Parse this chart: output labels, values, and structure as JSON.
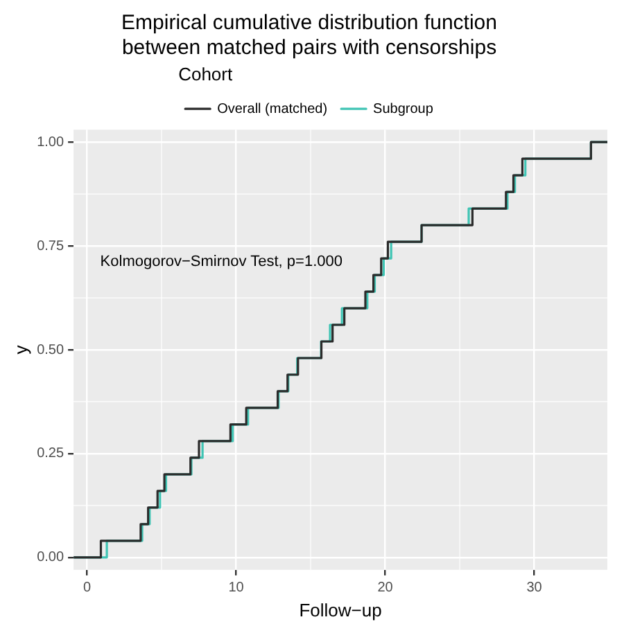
{
  "chart_data": {
    "type": "step",
    "title": "Empirical cumulative distribution function\nbetween matched pairs with censorships",
    "xlabel": "Follow−up",
    "ylabel": "y",
    "legend_title": "Cohort",
    "series": [
      {
        "name": "Overall (matched)",
        "color": "#2b2b2b",
        "x": [
          -0.9,
          0.93,
          3.6,
          4.1,
          4.73,
          5.19,
          6.94,
          7.51,
          9.62,
          10.68,
          12.79,
          13.45,
          14.15,
          15.72,
          16.47,
          17.26,
          18.67,
          19.21,
          19.73,
          20.18,
          22.44,
          25.85,
          28.1,
          28.6,
          29.2,
          33.8,
          34.9
        ],
        "values": [
          0,
          0.04,
          0.08,
          0.12,
          0.16,
          0.2,
          0.24,
          0.28,
          0.32,
          0.36,
          0.4,
          0.44,
          0.48,
          0.52,
          0.56,
          0.6,
          0.64,
          0.68,
          0.72,
          0.76,
          0.8,
          0.84,
          0.88,
          0.92,
          0.96,
          1,
          1
        ]
      },
      {
        "name": "Subgroup",
        "color": "#40c4b4",
        "x": [
          -0.9,
          1.33,
          3.7,
          4.2,
          4.9,
          5.3,
          7.0,
          7.75,
          9.77,
          10.8,
          12.85,
          13.5,
          14.1,
          15.7,
          16.3,
          17.1,
          18.8,
          19.3,
          19.9,
          20.4,
          22.44,
          25.6,
          28.2,
          28.7,
          29.4,
          33.8,
          34.9
        ],
        "values": [
          0,
          0.04,
          0.08,
          0.12,
          0.16,
          0.2,
          0.24,
          0.28,
          0.32,
          0.36,
          0.4,
          0.44,
          0.48,
          0.52,
          0.56,
          0.6,
          0.64,
          0.68,
          0.72,
          0.76,
          0.8,
          0.84,
          0.88,
          0.92,
          0.96,
          1,
          1
        ]
      }
    ],
    "xlim": [
      -0.9,
      34.9
    ],
    "xticks": [
      0,
      10,
      20,
      30
    ],
    "ylim": [
      -0.03,
      1.03
    ],
    "yticks": [
      {
        "value": 0,
        "label": "0.00"
      },
      {
        "value": 0.25,
        "label": "0.25"
      },
      {
        "value": 0.5,
        "label": "0.50"
      },
      {
        "value": 0.75,
        "label": "0.75"
      },
      {
        "value": 1,
        "label": "1.00"
      }
    ],
    "annotations": [
      "Kolmogorov−Smirnov Test, p=1.000"
    ],
    "grid": true,
    "legend": "top",
    "line_style": "solid",
    "marker": "none"
  }
}
